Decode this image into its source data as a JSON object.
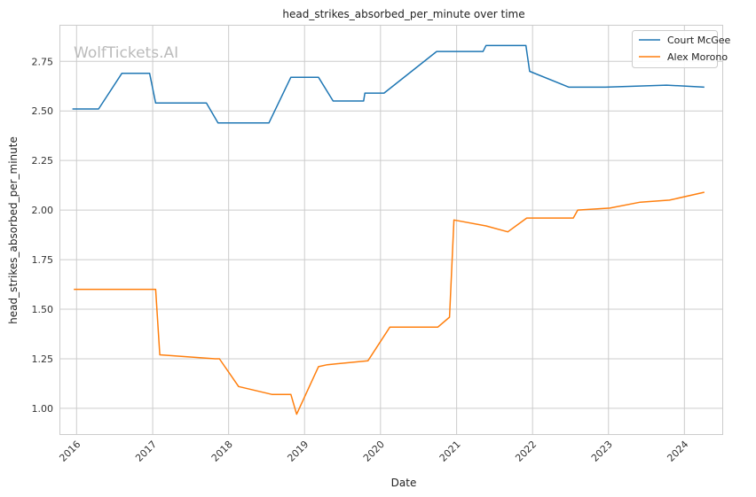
{
  "chart_data": {
    "type": "line",
    "title": "head_strikes_absorbed_per_minute over time",
    "xlabel": "Date",
    "ylabel": "head_strikes_absorbed_per_minute",
    "watermark": "WolfTickets.AI",
    "x_ticks": [
      "2016",
      "2017",
      "2018",
      "2019",
      "2020",
      "2021",
      "2022",
      "2023",
      "2024"
    ],
    "y_ticks": [
      "1.00",
      "1.25",
      "1.50",
      "1.75",
      "2.00",
      "2.25",
      "2.50",
      "2.75"
    ],
    "xlim": [
      "2015-10-15",
      "2024-07-01"
    ],
    "ylim": [
      0.87,
      2.93
    ],
    "grid": true,
    "legend_position": "top-right",
    "series": [
      {
        "name": "Court McGee",
        "color": "#1f77b4",
        "points": [
          [
            "2015-12-12",
            2.51
          ],
          [
            "2016-04-16",
            2.51
          ],
          [
            "2016-08-06",
            2.69
          ],
          [
            "2016-12-17",
            2.69
          ],
          [
            "2017-01-15",
            2.54
          ],
          [
            "2017-09-16",
            2.54
          ],
          [
            "2017-11-11",
            2.44
          ],
          [
            "2018-07-14",
            2.44
          ],
          [
            "2018-10-27",
            2.67
          ],
          [
            "2019-03-09",
            2.67
          ],
          [
            "2019-05-18",
            2.55
          ],
          [
            "2019-10-12",
            2.55
          ],
          [
            "2019-10-18",
            2.59
          ],
          [
            "2020-01-18",
            2.59
          ],
          [
            "2020-09-27",
            2.8
          ],
          [
            "2021-05-08",
            2.8
          ],
          [
            "2021-05-22",
            2.83
          ],
          [
            "2021-11-30",
            2.83
          ],
          [
            "2021-12-18",
            2.7
          ],
          [
            "2022-06-25",
            2.62
          ],
          [
            "2022-12-17",
            2.62
          ],
          [
            "2023-10-07",
            2.63
          ],
          [
            "2024-04-06",
            2.62
          ]
        ]
      },
      {
        "name": "Alex Morono",
        "color": "#ff7f0e",
        "points": [
          [
            "2015-12-19",
            1.6
          ],
          [
            "2017-01-15",
            1.6
          ],
          [
            "2017-02-04",
            1.27
          ],
          [
            "2017-10-28",
            1.25
          ],
          [
            "2017-11-18",
            1.25
          ],
          [
            "2018-02-18",
            1.11
          ],
          [
            "2018-07-28",
            1.07
          ],
          [
            "2018-10-27",
            1.07
          ],
          [
            "2018-11-24",
            0.97
          ],
          [
            "2019-03-09",
            1.21
          ],
          [
            "2019-04-20",
            1.22
          ],
          [
            "2019-11-02",
            1.24
          ],
          [
            "2020-02-15",
            1.41
          ],
          [
            "2020-10-03",
            1.41
          ],
          [
            "2020-11-28",
            1.46
          ],
          [
            "2020-12-19",
            1.95
          ],
          [
            "2021-05-22",
            1.92
          ],
          [
            "2021-09-04",
            1.89
          ],
          [
            "2021-12-04",
            1.96
          ],
          [
            "2022-07-16",
            1.96
          ],
          [
            "2022-08-06",
            2.0
          ],
          [
            "2023-01-07",
            2.01
          ],
          [
            "2023-06-03",
            2.04
          ],
          [
            "2023-10-21",
            2.05
          ],
          [
            "2024-04-06",
            2.09
          ]
        ]
      }
    ]
  }
}
